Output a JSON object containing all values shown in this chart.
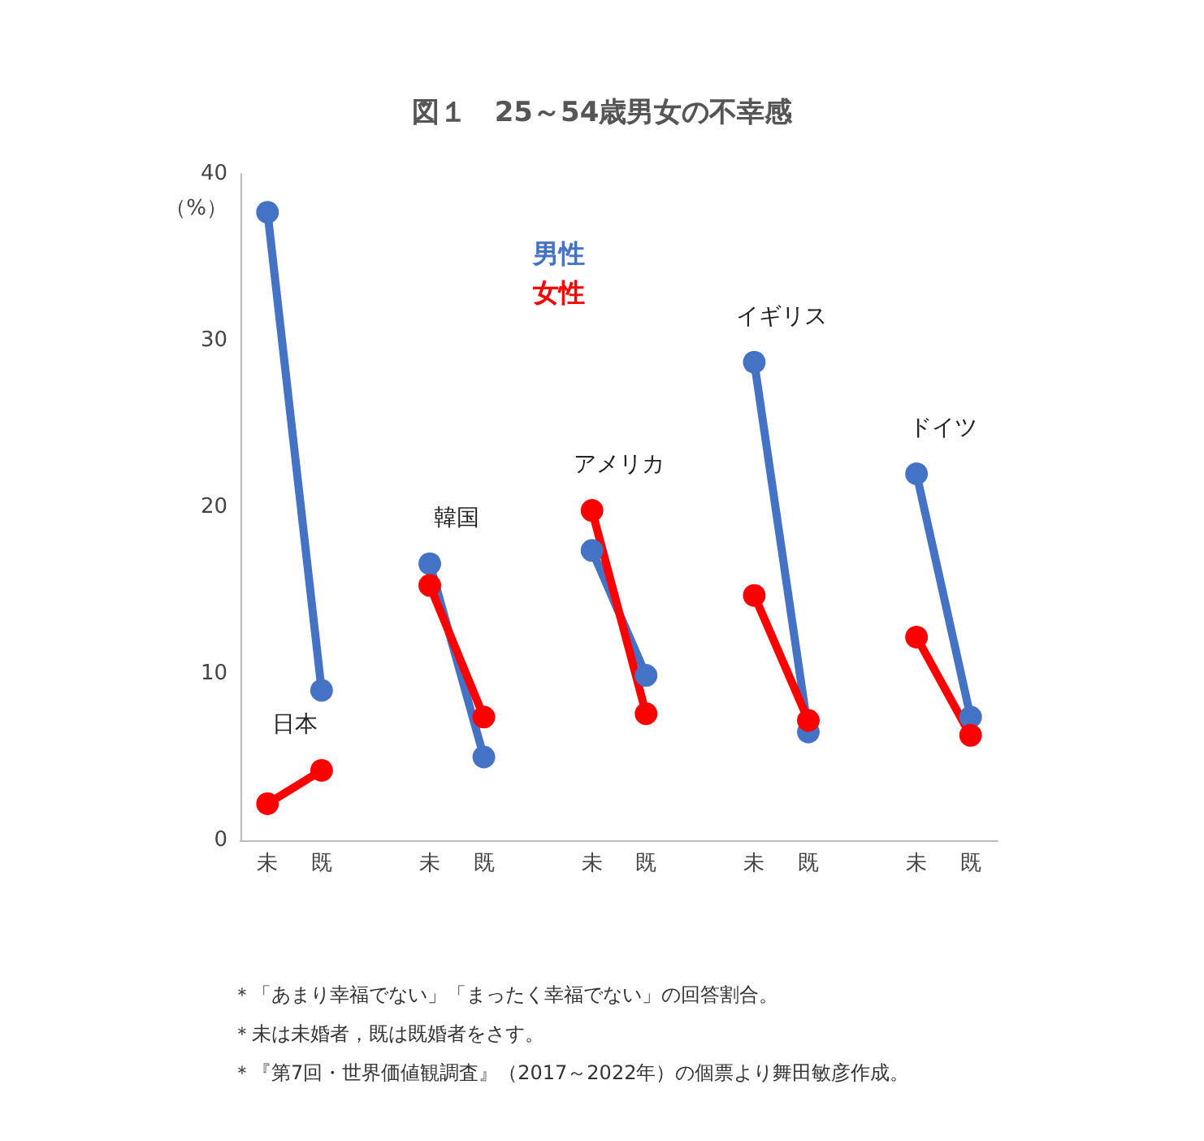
{
  "chart_data": {
    "type": "line",
    "title": "図１　25～54歳男女の不幸感",
    "ylabel": "（%）",
    "categories": [
      "未",
      "既",
      null,
      "未",
      "既",
      null,
      "未",
      "既",
      null,
      "未",
      "既",
      null,
      "未",
      "既"
    ],
    "series": [
      {
        "name": "男性",
        "color": "#4472c4",
        "values": [
          37.7,
          9.0,
          null,
          16.6,
          5.0,
          null,
          17.4,
          9.9,
          null,
          28.7,
          6.5,
          null,
          22.0,
          7.4
        ]
      },
      {
        "name": "女性",
        "color": "#ff0000",
        "values": [
          2.2,
          4.2,
          null,
          15.3,
          7.4,
          null,
          19.8,
          7.6,
          null,
          14.7,
          7.2,
          null,
          12.2,
          6.3
        ]
      }
    ],
    "ylim": [
      0,
      40
    ],
    "yticks": [
      0,
      10,
      20,
      30,
      40
    ],
    "grid": false,
    "legend": "top",
    "marker": "circle",
    "line_style": "solid",
    "annotations": [
      "日本",
      "韓国",
      "アメリカ",
      "イギリス",
      "ドイツ",
      "＊「あまり幸福でない」「まったく幸福でない」の回答割合。",
      "＊未は未婚者，既は既婚者をさす。",
      "＊『第7回・世界価値観調査』（2017～2022年）の個票より舞田敏彦作成。"
    ]
  }
}
